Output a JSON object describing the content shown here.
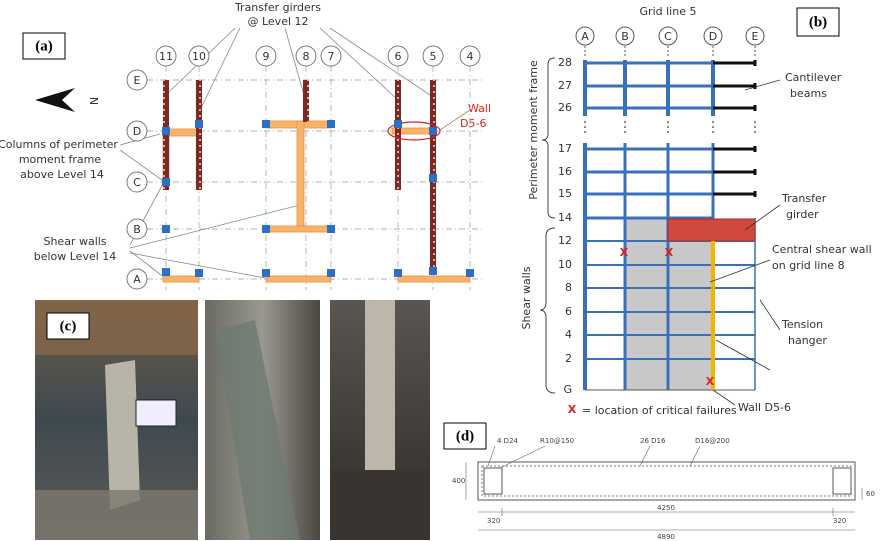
{
  "panel_a": {
    "label": "(a)",
    "transfer_girders": [
      "Transfer girders",
      "@ Level 12"
    ],
    "north": "N",
    "columns": [
      "11",
      "10",
      "9",
      "8",
      "7",
      "6",
      "5",
      "4"
    ],
    "rows": [
      "E",
      "D",
      "C",
      "B",
      "A"
    ],
    "wall": [
      "Wall",
      "D5-6"
    ],
    "perimeter_columns": [
      "Columns of perimeter",
      "moment frame",
      "above Level 14"
    ],
    "shear_walls": [
      "Shear walls",
      "below Level 14"
    ]
  },
  "panel_b": {
    "label": "(b)",
    "title": "Grid line 5",
    "columns": [
      "A",
      "B",
      "C",
      "D",
      "E"
    ],
    "levels": [
      "28",
      "27",
      "26",
      "17",
      "16",
      "15",
      "14",
      "12",
      "10",
      "8",
      "6",
      "4",
      "2",
      "G"
    ],
    "perimeter_frame": "Perimeter moment frame",
    "shear_walls": "Shear walls",
    "cantilever_beams": [
      "Cantilever",
      "beams"
    ],
    "transfer_girder": [
      "Transfer",
      "girder"
    ],
    "central_wall": [
      "Central shear wall",
      "on grid line 8"
    ],
    "tension_hanger": [
      "Tension",
      "hanger"
    ],
    "wall": "Wall D5-6",
    "failure_marker": "X",
    "legend": "= location of critical failures"
  },
  "panel_c": {
    "label": "(c)"
  },
  "panel_d": {
    "label": "(d)",
    "bars_corner": "4 D24",
    "ties": "R10@150",
    "bars_web": "26 D16",
    "web_ties": "D16@200",
    "height": "400",
    "cover": "60",
    "end_left": "320",
    "middle": "4250",
    "end_right": "320",
    "length": "4890"
  }
}
